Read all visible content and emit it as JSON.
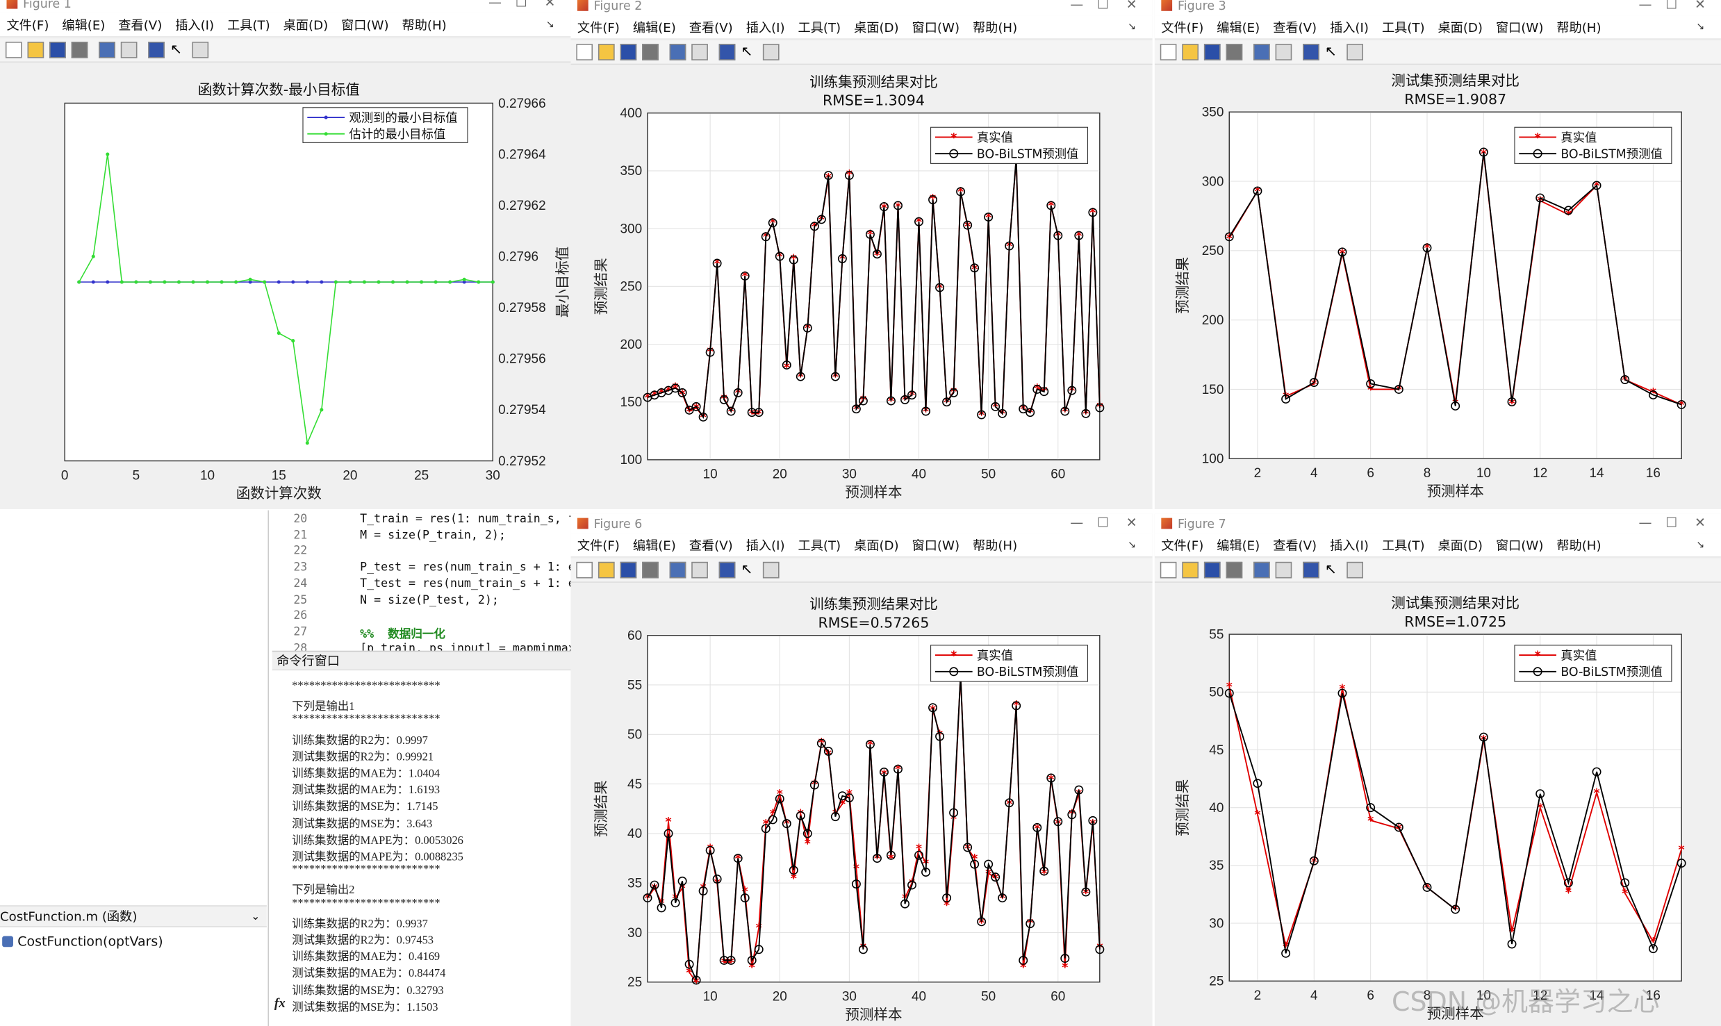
{
  "fig1": {
    "title": "Figure 1",
    "menu": [
      "文件(F)",
      "编辑(E)",
      "查看(V)",
      "插入(I)",
      "工具(T)",
      "桌面(D)",
      "窗口(W)",
      "帮助(H)"
    ],
    "chart_data": {
      "type": "line",
      "title": "函数计算次数-最小目标值",
      "xlabel": "函数计算次数",
      "ylabel": "最小目标值",
      "xlim": [
        0,
        30
      ],
      "ylim": [
        0.27952,
        0.27966
      ],
      "xticks": [
        "0",
        "5",
        "10",
        "15",
        "20",
        "25",
        "30"
      ],
      "yticks": [
        "0.27952",
        "0.27954",
        "0.27956",
        "0.27958",
        "0.2796",
        "0.27962",
        "0.27964",
        "0.27966"
      ],
      "legend_position": "top-right",
      "series": [
        {
          "name": "观测到的最小目标值",
          "color": "#3333cc",
          "x": [
            1,
            2,
            3,
            4,
            5,
            6,
            7,
            8,
            9,
            10,
            11,
            12,
            13,
            14,
            15,
            16,
            17,
            18,
            19,
            20,
            21,
            22,
            23,
            24,
            25,
            26,
            27,
            28,
            29,
            30
          ],
          "values": [
            0.27959,
            0.27959,
            0.27959,
            0.27959,
            0.27959,
            0.27959,
            0.27959,
            0.27959,
            0.27959,
            0.27959,
            0.27959,
            0.27959,
            0.27959,
            0.27959,
            0.27959,
            0.27959,
            0.27959,
            0.27959,
            0.27959,
            0.27959,
            0.27959,
            0.27959,
            0.27959,
            0.27959,
            0.27959,
            0.27959,
            0.27959,
            0.27959,
            0.27959,
            0.27959
          ]
        },
        {
          "name": "估计的最小目标值",
          "color": "#33dd33",
          "x": [
            1,
            2,
            3,
            4,
            5,
            6,
            7,
            8,
            9,
            10,
            11,
            12,
            13,
            14,
            15,
            16,
            17,
            18,
            19,
            20,
            21,
            22,
            23,
            24,
            25,
            26,
            27,
            28,
            29,
            30
          ],
          "values": [
            0.27959,
            0.2796,
            0.27964,
            0.27959,
            0.27959,
            0.27959,
            0.27959,
            0.27959,
            0.27959,
            0.27959,
            0.27959,
            0.27959,
            0.279591,
            0.27959,
            0.27957,
            0.279567,
            0.279527,
            0.27954,
            0.27959,
            0.27959,
            0.27959,
            0.27959,
            0.27959,
            0.27959,
            0.27959,
            0.27959,
            0.27959,
            0.279591,
            0.27959,
            0.27959
          ]
        }
      ]
    }
  },
  "fig2": {
    "title": "Figure 2",
    "menu": [
      "文件(F)",
      "编辑(E)",
      "查看(V)",
      "插入(I)",
      "工具(T)",
      "桌面(D)",
      "窗口(W)",
      "帮助(H)"
    ],
    "chart_data": {
      "type": "line",
      "title": "训练集预测结果对比",
      "subtitle": "RMSE=1.3094",
      "xlabel": "预测样本",
      "ylabel": "预测结果",
      "xlim": [
        1,
        66
      ],
      "ylim": [
        100,
        400
      ],
      "xticks": [
        "10",
        "20",
        "30",
        "40",
        "50",
        "60"
      ],
      "yticks": [
        "100",
        "150",
        "200",
        "250",
        "300",
        "350",
        "400"
      ],
      "legend_position": "top-right",
      "series": [
        {
          "name": "真实值",
          "color": "#e00000",
          "values": [
            154,
            156,
            158,
            160,
            163,
            157,
            142,
            145,
            137,
            194,
            270,
            153,
            142,
            158,
            259,
            140,
            140,
            293,
            305,
            276,
            180,
            274,
            172,
            214,
            302,
            308,
            344,
            172,
            274,
            347,
            144,
            152,
            295,
            277,
            318,
            151,
            319,
            152,
            156,
            306,
            142,
            326,
            249,
            150,
            159,
            332,
            302,
            265,
            139,
            310,
            146,
            140,
            285,
            360,
            144,
            141,
            162,
            160,
            320,
            294,
            142,
            160,
            294,
            140,
            314,
            146
          ]
        },
        {
          "name": "BO-BiLSTM预测值",
          "color": "#000000",
          "values": [
            154,
            156,
            158,
            160,
            162,
            158,
            143,
            146,
            137,
            193,
            270,
            152,
            142,
            158,
            259,
            141,
            141,
            293,
            305,
            276,
            182,
            273,
            172,
            214,
            302,
            308,
            346,
            172,
            274,
            346,
            144,
            151,
            295,
            278,
            319,
            151,
            320,
            152,
            156,
            306,
            142,
            325,
            249,
            150,
            158,
            332,
            303,
            266,
            139,
            310,
            146,
            140,
            285,
            361,
            144,
            141,
            161,
            159,
            320,
            294,
            142,
            160,
            294,
            140,
            314,
            145
          ]
        }
      ]
    }
  },
  "fig3": {
    "title": "Figure 3",
    "menu": [
      "文件(F)",
      "编辑(E)",
      "查看(V)",
      "插入(I)",
      "工具(T)",
      "桌面(D)",
      "窗口(W)",
      "帮助(H)"
    ],
    "chart_data": {
      "type": "line",
      "title": "测试集预测结果对比",
      "subtitle": "RMSE=1.9087",
      "xlabel": "预测样本",
      "ylabel": "预测结果",
      "xlim": [
        1,
        17
      ],
      "ylim": [
        100,
        350
      ],
      "xticks": [
        "2",
        "4",
        "6",
        "8",
        "10",
        "12",
        "14",
        "16"
      ],
      "yticks": [
        "100",
        "150",
        "200",
        "250",
        "300",
        "350"
      ],
      "legend_position": "top-right",
      "series": [
        {
          "name": "真实值",
          "color": "#e00000",
          "values": [
            259,
            293,
            145,
            154,
            248,
            150,
            150,
            252,
            140,
            320,
            140,
            286,
            276,
            297,
            157,
            148,
            139
          ]
        },
        {
          "name": "BO-BiLSTM预测值",
          "color": "#000000",
          "values": [
            260,
            293,
            143,
            155,
            249,
            154,
            150,
            252,
            138,
            321,
            141,
            288,
            279,
            297,
            157,
            146,
            139
          ]
        }
      ]
    }
  },
  "fig6": {
    "title": "Figure 6",
    "menu": [
      "文件(F)",
      "编辑(E)",
      "查看(V)",
      "插入(I)",
      "工具(T)",
      "桌面(D)",
      "窗口(W)",
      "帮助(H)"
    ],
    "chart_data": {
      "type": "line",
      "title": "训练集预测结果对比",
      "subtitle": "RMSE=0.57265",
      "xlabel": "预测样本",
      "ylabel": "预测结果",
      "xlim": [
        1,
        66
      ],
      "ylim": [
        25,
        60
      ],
      "xticks": [
        "10",
        "20",
        "30",
        "40",
        "50",
        "60"
      ],
      "yticks": [
        "25",
        "30",
        "35",
        "40",
        "45",
        "50",
        "55",
        "60"
      ],
      "legend_position": "top-right",
      "series": [
        {
          "name": "真实值",
          "color": "#e00000",
          "values": [
            33.5,
            34.5,
            33,
            41.2,
            33.5,
            34.5,
            26,
            25,
            34.5,
            38.5,
            35,
            27,
            27,
            37.5,
            34.2,
            26.5,
            30.5,
            41,
            42,
            44,
            41,
            35.5,
            42,
            39,
            45,
            49.2,
            48,
            42,
            43,
            44,
            36.5,
            28.5,
            49,
            37.5,
            46,
            37.5,
            46.5,
            33.5,
            35,
            38.5,
            37,
            52.5,
            50,
            32.8,
            41.5,
            56,
            38.5,
            37.5,
            31,
            36,
            35.5,
            33.5,
            43,
            53,
            26.5,
            31,
            40.5,
            36,
            45.5,
            41,
            26.5,
            42,
            44,
            34,
            41,
            28.5
          ]
        },
        {
          "name": "BO-BiLSTM预测值",
          "color": "#000000",
          "values": [
            33.5,
            34.8,
            32.5,
            40,
            33,
            35.2,
            26.8,
            25.2,
            34.2,
            38.3,
            35.4,
            27.2,
            27.2,
            37.5,
            33.5,
            27.2,
            28.3,
            40.5,
            41.4,
            43.5,
            41,
            36.3,
            41.8,
            40,
            44.9,
            49.1,
            48.3,
            41.7,
            43.8,
            43.6,
            34.9,
            28.3,
            49,
            37.5,
            46.2,
            37.8,
            46.5,
            32.9,
            34.8,
            37.8,
            36.1,
            52.7,
            49.8,
            33.5,
            42.1,
            56,
            38.6,
            36.9,
            31.1,
            36.9,
            35.6,
            33.5,
            43.1,
            52.9,
            27.2,
            30.9,
            40.6,
            36.2,
            45.6,
            41.2,
            27.4,
            41.9,
            44.4,
            34.1,
            41.3,
            28.3
          ]
        }
      ]
    }
  },
  "fig7": {
    "title": "Figure 7",
    "menu": [
      "文件(F)",
      "编辑(E)",
      "查看(V)",
      "插入(I)",
      "工具(T)",
      "桌面(D)",
      "窗口(W)",
      "帮助(H)"
    ],
    "chart_data": {
      "type": "line",
      "title": "测试集预测结果对比",
      "subtitle": "RMSE=1.0725",
      "xlabel": "预测样本",
      "ylabel": "预测结果",
      "xlim": [
        1,
        17
      ],
      "ylim": [
        25,
        55
      ],
      "xticks": [
        "2",
        "4",
        "6",
        "8",
        "10",
        "12",
        "14",
        "16"
      ],
      "yticks": [
        "25",
        "30",
        "35",
        "40",
        "45",
        "50",
        "55"
      ],
      "legend_position": "top-right",
      "series": [
        {
          "name": "真实值",
          "color": "#e00000",
          "values": [
            50.5,
            39.4,
            28,
            35.3,
            50.3,
            38.9,
            38.2,
            33.1,
            31.2,
            45.9,
            29.3,
            40,
            32.7,
            41.3,
            32.6,
            28.4,
            36.4
          ]
        },
        {
          "name": "BO-BiLSTM预测值",
          "color": "#000000",
          "values": [
            49.9,
            42.1,
            27.4,
            35.4,
            49.9,
            40,
            38.3,
            33.1,
            31.2,
            46.1,
            28.2,
            41.2,
            33.5,
            43.1,
            33.5,
            27.8,
            35.2
          ]
        }
      ]
    }
  },
  "editor": {
    "lines": [
      {
        "n": "20",
        "code": "T_train = res(1: num_train_s, f"
      },
      {
        "n": "21",
        "code": "M = size(P_train, 2);"
      },
      {
        "n": "22",
        "code": ""
      },
      {
        "n": "23",
        "code": "P_test = res(num_train_s + 1: e"
      },
      {
        "n": "24",
        "code": "T_test = res(num_train_s + 1: e"
      },
      {
        "n": "25",
        "code": "N = size(P_test, 2);"
      },
      {
        "n": "26",
        "code": ""
      },
      {
        "n": "27",
        "code": "%%  数据归一化",
        "comment": true
      },
      {
        "n": "28",
        "code": "[p_train, ps_input] = mapminmax"
      }
    ]
  },
  "command_window": {
    "title": "命令行窗口",
    "lines": [
      "**************************",
      "下列是输出1",
      "**************************",
      "训练集数据的R2为：0.9997",
      "测试集数据的R2为：0.99921",
      "训练集数据的MAE为：1.0404",
      "测试集数据的MAE为：1.6193",
      "训练集数据的MSE为：1.7145",
      "测试集数据的MSE为：3.643",
      "训练集数据的MAPE为：0.0053026",
      "测试集数据的MAPE为：0.0088235",
      "**************************",
      "下列是输出2",
      "**************************",
      "训练集数据的R2为：0.9937",
      "测试集数据的R2为：0.97453",
      "训练集数据的MAE为：0.4169",
      "测试集数据的MAE为：0.84474",
      "训练集数据的MSE为：0.32793",
      "测试集数据的MSE为：1.1503"
    ],
    "prompt": "fx"
  },
  "left_panel": {
    "header": "CostFunction.m  (函数)",
    "item": "CostFunction(optVars)"
  },
  "watermark": "CSDN @机器学习之心"
}
